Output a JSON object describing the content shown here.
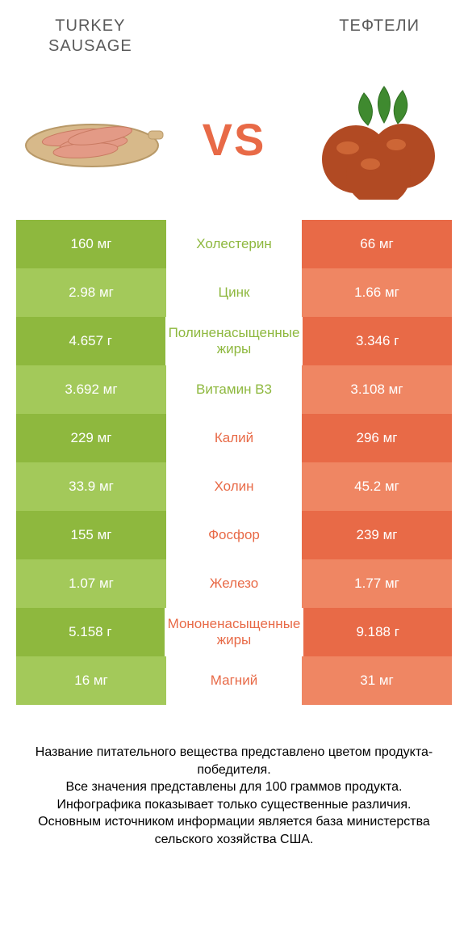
{
  "header": {
    "left_title": "TURKEY\nSAUSAGE",
    "right_title": "ТЕФТЕЛИ"
  },
  "vs_label": "VS",
  "colors": {
    "left_dark": "#8eb83e",
    "left_light": "#a3c95a",
    "right_dark": "#e86a47",
    "right_light": "#ef8663",
    "mid_left": "#8eb83e",
    "mid_right": "#e86a47",
    "vs_color": "#e86a47",
    "header_text": "#5a5a5a"
  },
  "rows": [
    {
      "left": "160 мг",
      "mid": "Холестерин",
      "right": "66 мг",
      "winner": "left"
    },
    {
      "left": "2.98 мг",
      "mid": "Цинк",
      "right": "1.66 мг",
      "winner": "left"
    },
    {
      "left": "4.657 г",
      "mid": "Полиненасыщенные жиры",
      "right": "3.346 г",
      "winner": "left"
    },
    {
      "left": "3.692 мг",
      "mid": "Витамин B3",
      "right": "3.108 мг",
      "winner": "left"
    },
    {
      "left": "229 мг",
      "mid": "Калий",
      "right": "296 мг",
      "winner": "right"
    },
    {
      "left": "33.9 мг",
      "mid": "Холин",
      "right": "45.2 мг",
      "winner": "right"
    },
    {
      "left": "155 мг",
      "mid": "Фосфор",
      "right": "239 мг",
      "winner": "right"
    },
    {
      "left": "1.07 мг",
      "mid": "Железо",
      "right": "1.77 мг",
      "winner": "right"
    },
    {
      "left": "5.158 г",
      "mid": "Мононенасыщенные жиры",
      "right": "9.188 г",
      "winner": "right"
    },
    {
      "left": "16 мг",
      "mid": "Магний",
      "right": "31 мг",
      "winner": "right"
    }
  ],
  "footer": {
    "line1": "Название питательного вещества представлено цветом продукта-победителя.",
    "line2": "Все значения представлены для 100 граммов продукта.",
    "line3": "Инфографика показывает только существенные различия.",
    "line4": "Основным источником информации является база министерства сельского хозяйства США."
  },
  "sausage_svg": {
    "board_fill": "#d7b98a",
    "board_stroke": "#b89968",
    "sausage_fill": "#e39a86",
    "sausage_stroke": "#c97a62"
  },
  "meatball_svg": {
    "ball_fill": "#b14a23",
    "ball_highlight": "#d9723f",
    "leaf_fill": "#3f8a2f",
    "leaf_dark": "#2f6f22"
  }
}
